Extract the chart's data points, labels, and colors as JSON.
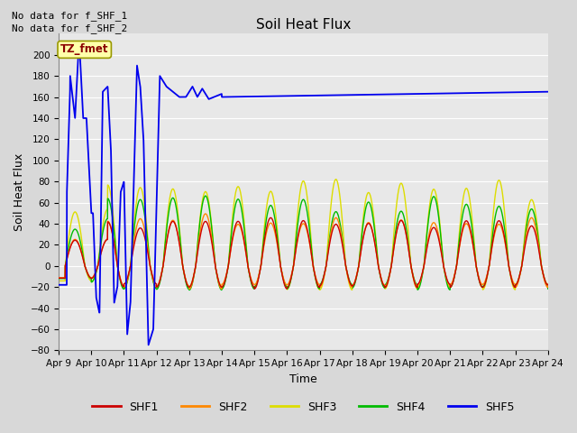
{
  "title": "Soil Heat Flux",
  "xlabel": "Time",
  "ylabel": "Soil Heat Flux",
  "ylim": [
    -80,
    220
  ],
  "yticks": [
    -80,
    -60,
    -40,
    -20,
    0,
    20,
    40,
    60,
    80,
    100,
    120,
    140,
    160,
    180,
    200
  ],
  "no_data_text_1": "No data for f_SHF_1",
  "no_data_text_2": "No data for f_SHF_2",
  "annotation_text": "TZ_fmet",
  "annotation_color": "#8B0000",
  "annotation_bg": "#FFFFAA",
  "annotation_edge": "#999900",
  "fig_bg": "#D8D8D8",
  "plot_bg": "#E8E8E8",
  "grid_color": "#FFFFFF",
  "colors": {
    "SHF1": "#CC0000",
    "SHF2": "#FF8800",
    "SHF3": "#DDDD00",
    "SHF4": "#00BB00",
    "SHF5": "#0000EE"
  },
  "x_ticks": [
    9,
    10,
    11,
    12,
    13,
    14,
    15,
    16,
    17,
    18,
    19,
    20,
    21,
    22,
    23,
    24
  ]
}
